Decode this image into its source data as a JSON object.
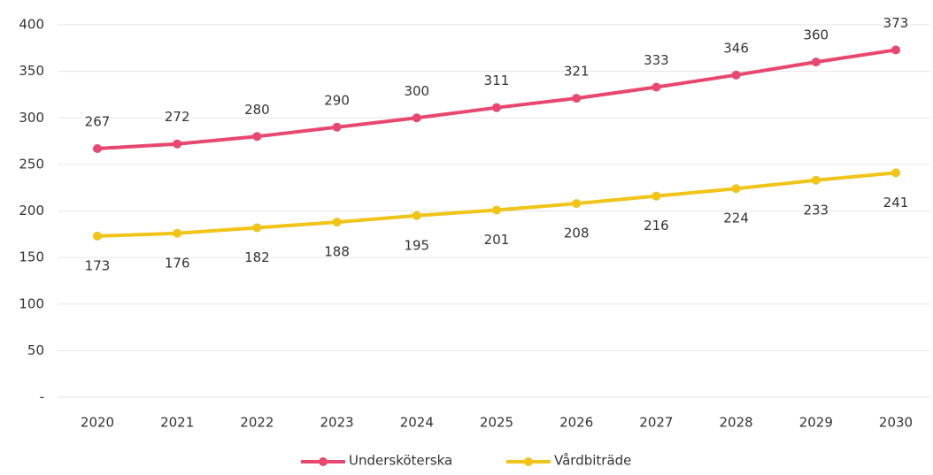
{
  "chart_data": {
    "type": "line",
    "categories": [
      "2020",
      "2021",
      "2022",
      "2023",
      "2024",
      "2025",
      "2026",
      "2027",
      "2028",
      "2029",
      "2030"
    ],
    "series": [
      {
        "name": "Undersköterska",
        "color": "#e8476f",
        "values": [
          267,
          272,
          280,
          290,
          300,
          311,
          321,
          333,
          346,
          360,
          373
        ]
      },
      {
        "name": "Vårdbiträde",
        "color": "#f0c419",
        "values": [
          173,
          176,
          182,
          188,
          195,
          201,
          208,
          216,
          224,
          233,
          241
        ]
      }
    ],
    "ylim": [
      0,
      400
    ],
    "yticks": [
      {
        "value": 0,
        "label": "-"
      },
      50,
      100,
      150,
      200,
      250,
      300,
      350,
      400
    ],
    "grid": true,
    "legend": "bottom"
  }
}
